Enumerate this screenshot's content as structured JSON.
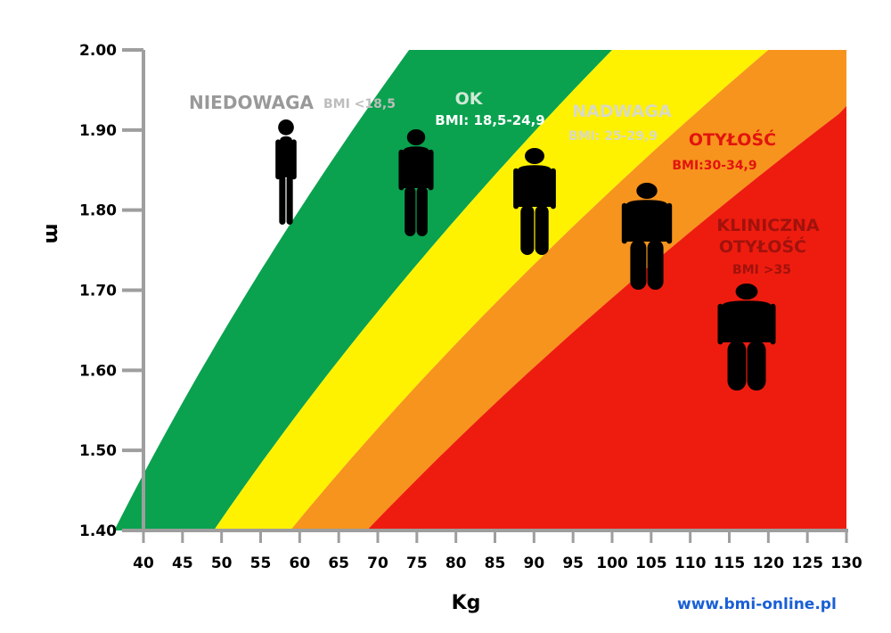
{
  "chart_data": {
    "type": "area",
    "xlabel": "Kg",
    "ylabel": "m",
    "xlim": [
      40,
      130
    ],
    "ylim": [
      1.4,
      2.0
    ],
    "x_ticks": [
      "40",
      "45",
      "50",
      "55",
      "60",
      "65",
      "70",
      "75",
      "80",
      "85",
      "90",
      "95",
      "100",
      "105",
      "110",
      "115",
      "120",
      "125",
      "130"
    ],
    "y_ticks": [
      "1.40",
      "1.50",
      "1.60",
      "1.70",
      "1.80",
      "1.90",
      "2.00"
    ],
    "bmi_boundaries": [
      18.5,
      25,
      30,
      35
    ],
    "zones": [
      {
        "title": "NIEDOWAGA",
        "subtitle": "BMI <18,5",
        "color": "#ffffff",
        "text_color": "#999999"
      },
      {
        "title": "OK",
        "subtitle": "BMI: 18,5-24,9",
        "color": "#0aa24f",
        "text_color": "#cfe9d6"
      },
      {
        "title": "NADWAGA",
        "subtitle": "BMI: 25-29,9",
        "color": "#fff200",
        "text_color": "#d9d9c4"
      },
      {
        "title": "OTYŁOŚĆ",
        "subtitle": "BMI:30-34,9",
        "color": "#f7941d",
        "text_color": "#e2140f"
      },
      {
        "title": "KLINICZNA OTYŁOŚĆ",
        "subtitle": "BMI >35",
        "color": "#ee1c0f",
        "text_color": "#a1120c"
      }
    ],
    "grid": false,
    "legend": "none"
  },
  "footer": {
    "website": "www.bmi-online.pl"
  }
}
